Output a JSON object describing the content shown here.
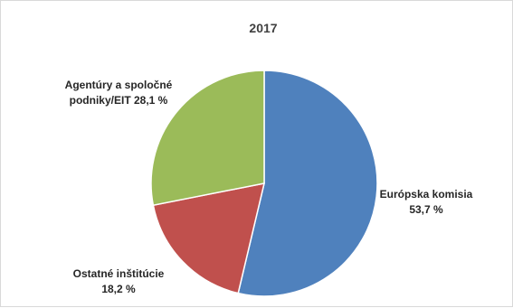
{
  "chart_data": {
    "type": "pie",
    "title": "2017",
    "slices": [
      {
        "label_lines": [
          "Európska komisia",
          "53,7 %"
        ],
        "value": 53.7,
        "color": "#4f81bd"
      },
      {
        "label_lines": [
          "Ostatné inštitúcie",
          "18,2 %"
        ],
        "value": 18.2,
        "color": "#c0504d"
      },
      {
        "label_lines": [
          "Agentúry a spoločné",
          "podniky/EIT 28,1 %"
        ],
        "value": 28.1,
        "color": "#9bbb59"
      }
    ],
    "slice_border_color": "#ffffff"
  }
}
